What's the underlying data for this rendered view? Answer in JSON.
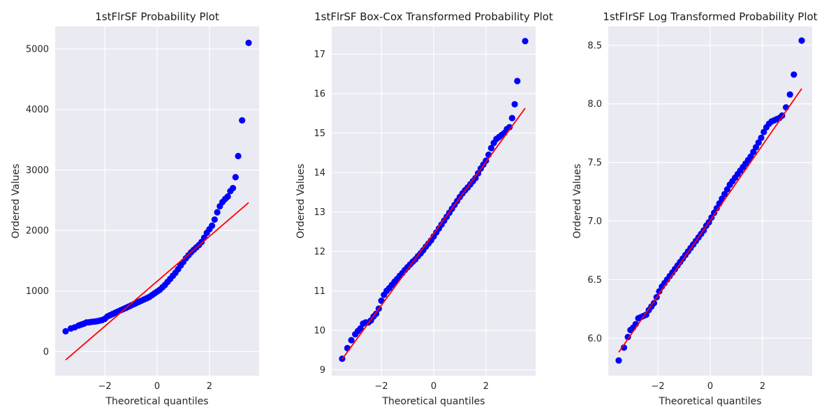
{
  "colors": {
    "axes_background": "#eaeaf2",
    "grid": "#ffffff",
    "points": "#0000ff",
    "fit_line": "#ff0000"
  },
  "chart_data": [
    {
      "type": "scatter",
      "title": "1stFlrSF Probability Plot",
      "xlabel": "Theoretical quantiles",
      "ylabel": "Ordered Values",
      "xlim": [
        -3.9,
        3.9
      ],
      "ylim": [
        -400,
        5370
      ],
      "x_ticks": [
        -2,
        0,
        2
      ],
      "x_tick_labels": [
        "−2",
        "0",
        "2"
      ],
      "y_ticks": [
        0,
        1000,
        2000,
        3000,
        4000,
        5000
      ],
      "y_tick_labels": [
        "0",
        "1000",
        "2000",
        "3000",
        "4000",
        "5000"
      ],
      "grid": true,
      "fit_line": {
        "x": [
          -3.5,
          3.5
        ],
        "y": [
          -140,
          2460
        ]
      },
      "points": [
        [
          -3.5,
          334
        ],
        [
          -3.3,
          380
        ],
        [
          -3.15,
          400
        ],
        [
          -3.0,
          430
        ],
        [
          -2.9,
          445
        ],
        [
          -2.8,
          460
        ],
        [
          -2.7,
          480
        ],
        [
          -2.6,
          483
        ],
        [
          -2.5,
          490
        ],
        [
          -2.4,
          495
        ],
        [
          -2.3,
          500
        ],
        [
          -2.2,
          510
        ],
        [
          -2.1,
          520
        ],
        [
          -2.0,
          540
        ],
        [
          -1.9,
          580
        ],
        [
          -1.8,
          600
        ],
        [
          -1.7,
          620
        ],
        [
          -1.6,
          640
        ],
        [
          -1.5,
          660
        ],
        [
          -1.4,
          680
        ],
        [
          -1.3,
          700
        ],
        [
          -1.2,
          720
        ],
        [
          -1.1,
          740
        ],
        [
          -1.0,
          760
        ],
        [
          -0.9,
          780
        ],
        [
          -0.8,
          800
        ],
        [
          -0.7,
          820
        ],
        [
          -0.6,
          840
        ],
        [
          -0.5,
          860
        ],
        [
          -0.4,
          880
        ],
        [
          -0.3,
          900
        ],
        [
          -0.2,
          930
        ],
        [
          -0.1,
          960
        ],
        [
          0.0,
          990
        ],
        [
          0.1,
          1020
        ],
        [
          0.2,
          1060
        ],
        [
          0.3,
          1100
        ],
        [
          0.4,
          1150
        ],
        [
          0.5,
          1200
        ],
        [
          0.6,
          1250
        ],
        [
          0.7,
          1300
        ],
        [
          0.8,
          1360
        ],
        [
          0.9,
          1420
        ],
        [
          1.0,
          1480
        ],
        [
          1.1,
          1540
        ],
        [
          1.2,
          1590
        ],
        [
          1.3,
          1640
        ],
        [
          1.4,
          1680
        ],
        [
          1.5,
          1720
        ],
        [
          1.6,
          1760
        ],
        [
          1.7,
          1810
        ],
        [
          1.8,
          1880
        ],
        [
          1.9,
          1960
        ],
        [
          2.0,
          2020
        ],
        [
          2.1,
          2080
        ],
        [
          2.2,
          2180
        ],
        [
          2.3,
          2300
        ],
        [
          2.4,
          2400
        ],
        [
          2.5,
          2470
        ],
        [
          2.6,
          2520
        ],
        [
          2.7,
          2560
        ],
        [
          2.8,
          2650
        ],
        [
          2.9,
          2700
        ],
        [
          3.0,
          2880
        ],
        [
          3.1,
          3230
        ],
        [
          3.25,
          3820
        ],
        [
          3.5,
          5100
        ]
      ]
    },
    {
      "type": "scatter",
      "title": "1stFlrSF Box-Cox Transformed Probability Plot",
      "xlabel": "Theoretical quantiles",
      "ylabel": "Ordered Values",
      "xlim": [
        -3.9,
        3.9
      ],
      "ylim": [
        8.85,
        17.7
      ],
      "x_ticks": [
        -2,
        0,
        2
      ],
      "x_tick_labels": [
        "−2",
        "0",
        "2"
      ],
      "y_ticks": [
        9,
        10,
        11,
        12,
        13,
        14,
        15,
        16,
        17
      ],
      "y_tick_labels": [
        "9",
        "10",
        "11",
        "12",
        "13",
        "14",
        "15",
        "16",
        "17"
      ],
      "grid": true,
      "fit_line": {
        "x": [
          -3.5,
          3.5
        ],
        "y": [
          9.27,
          15.63
        ]
      },
      "points": [
        [
          -3.5,
          9.28
        ],
        [
          -3.3,
          9.55
        ],
        [
          -3.15,
          9.75
        ],
        [
          -3.0,
          9.9
        ],
        [
          -2.9,
          9.98
        ],
        [
          -2.8,
          10.05
        ],
        [
          -2.7,
          10.17
        ],
        [
          -2.6,
          10.2
        ],
        [
          -2.5,
          10.2
        ],
        [
          -2.4,
          10.25
        ],
        [
          -2.3,
          10.35
        ],
        [
          -2.2,
          10.42
        ],
        [
          -2.1,
          10.55
        ],
        [
          -2.0,
          10.75
        ],
        [
          -1.9,
          10.9
        ],
        [
          -1.8,
          11.0
        ],
        [
          -1.7,
          11.07
        ],
        [
          -1.6,
          11.15
        ],
        [
          -1.5,
          11.23
        ],
        [
          -1.4,
          11.3
        ],
        [
          -1.3,
          11.38
        ],
        [
          -1.2,
          11.45
        ],
        [
          -1.1,
          11.53
        ],
        [
          -1.0,
          11.6
        ],
        [
          -0.9,
          11.67
        ],
        [
          -0.8,
          11.74
        ],
        [
          -0.7,
          11.8
        ],
        [
          -0.6,
          11.88
        ],
        [
          -0.5,
          11.95
        ],
        [
          -0.4,
          12.03
        ],
        [
          -0.3,
          12.12
        ],
        [
          -0.2,
          12.2
        ],
        [
          -0.1,
          12.28
        ],
        [
          0.0,
          12.38
        ],
        [
          0.1,
          12.48
        ],
        [
          0.2,
          12.58
        ],
        [
          0.3,
          12.68
        ],
        [
          0.4,
          12.78
        ],
        [
          0.5,
          12.88
        ],
        [
          0.6,
          12.98
        ],
        [
          0.7,
          13.08
        ],
        [
          0.8,
          13.18
        ],
        [
          0.9,
          13.28
        ],
        [
          1.0,
          13.38
        ],
        [
          1.1,
          13.47
        ],
        [
          1.2,
          13.55
        ],
        [
          1.3,
          13.62
        ],
        [
          1.4,
          13.7
        ],
        [
          1.5,
          13.78
        ],
        [
          1.6,
          13.86
        ],
        [
          1.7,
          13.98
        ],
        [
          1.8,
          14.1
        ],
        [
          1.9,
          14.2
        ],
        [
          2.0,
          14.3
        ],
        [
          2.1,
          14.45
        ],
        [
          2.2,
          14.62
        ],
        [
          2.3,
          14.75
        ],
        [
          2.4,
          14.85
        ],
        [
          2.5,
          14.9
        ],
        [
          2.6,
          14.95
        ],
        [
          2.7,
          15.0
        ],
        [
          2.8,
          15.1
        ],
        [
          2.9,
          15.15
        ],
        [
          3.0,
          15.38
        ],
        [
          3.1,
          15.73
        ],
        [
          3.2,
          16.32
        ],
        [
          3.5,
          17.33
        ]
      ]
    },
    {
      "type": "scatter",
      "title": "1stFlrSF Log Transformed Probability Plot",
      "xlabel": "Theoretical quantiles",
      "ylabel": "Ordered Values",
      "xlim": [
        -3.9,
        3.9
      ],
      "ylim": [
        5.68,
        8.66
      ],
      "x_ticks": [
        -2,
        0,
        2
      ],
      "x_tick_labels": [
        "−2",
        "0",
        "2"
      ],
      "y_ticks": [
        6.0,
        6.5,
        7.0,
        7.5,
        8.0,
        8.5
      ],
      "y_tick_labels": [
        "6.0",
        "6.5",
        "7.0",
        "7.5",
        "8.0",
        "8.5"
      ],
      "grid": true,
      "fit_line": {
        "x": [
          -3.5,
          3.5
        ],
        "y": [
          5.88,
          8.13
        ]
      },
      "points": [
        [
          -3.5,
          5.81
        ],
        [
          -3.3,
          5.92
        ],
        [
          -3.15,
          6.01
        ],
        [
          -3.05,
          6.07
        ],
        [
          -2.95,
          6.09
        ],
        [
          -2.85,
          6.12
        ],
        [
          -2.75,
          6.17
        ],
        [
          -2.65,
          6.18
        ],
        [
          -2.55,
          6.19
        ],
        [
          -2.45,
          6.2
        ],
        [
          -2.35,
          6.24
        ],
        [
          -2.25,
          6.27
        ],
        [
          -2.15,
          6.3
        ],
        [
          -2.05,
          6.35
        ],
        [
          -1.95,
          6.4
        ],
        [
          -1.85,
          6.44
        ],
        [
          -1.75,
          6.47
        ],
        [
          -1.65,
          6.5
        ],
        [
          -1.55,
          6.53
        ],
        [
          -1.45,
          6.56
        ],
        [
          -1.35,
          6.59
        ],
        [
          -1.25,
          6.62
        ],
        [
          -1.15,
          6.65
        ],
        [
          -1.05,
          6.68
        ],
        [
          -0.95,
          6.71
        ],
        [
          -0.85,
          6.74
        ],
        [
          -0.75,
          6.77
        ],
        [
          -0.65,
          6.8
        ],
        [
          -0.55,
          6.83
        ],
        [
          -0.45,
          6.86
        ],
        [
          -0.35,
          6.89
        ],
        [
          -0.25,
          6.92
        ],
        [
          -0.15,
          6.96
        ],
        [
          -0.05,
          6.99
        ],
        [
          0.05,
          7.03
        ],
        [
          0.15,
          7.07
        ],
        [
          0.25,
          7.11
        ],
        [
          0.35,
          7.15
        ],
        [
          0.45,
          7.19
        ],
        [
          0.55,
          7.23
        ],
        [
          0.65,
          7.27
        ],
        [
          0.75,
          7.31
        ],
        [
          0.85,
          7.34
        ],
        [
          0.95,
          7.37
        ],
        [
          1.05,
          7.4
        ],
        [
          1.15,
          7.43
        ],
        [
          1.25,
          7.46
        ],
        [
          1.35,
          7.49
        ],
        [
          1.45,
          7.52
        ],
        [
          1.55,
          7.55
        ],
        [
          1.65,
          7.59
        ],
        [
          1.75,
          7.63
        ],
        [
          1.85,
          7.67
        ],
        [
          1.95,
          7.71
        ],
        [
          2.05,
          7.76
        ],
        [
          2.15,
          7.8
        ],
        [
          2.25,
          7.83
        ],
        [
          2.35,
          7.85
        ],
        [
          2.45,
          7.86
        ],
        [
          2.55,
          7.87
        ],
        [
          2.65,
          7.88
        ],
        [
          2.75,
          7.9
        ],
        [
          2.9,
          7.97
        ],
        [
          3.05,
          8.08
        ],
        [
          3.2,
          8.25
        ],
        [
          3.5,
          8.54
        ]
      ]
    }
  ]
}
